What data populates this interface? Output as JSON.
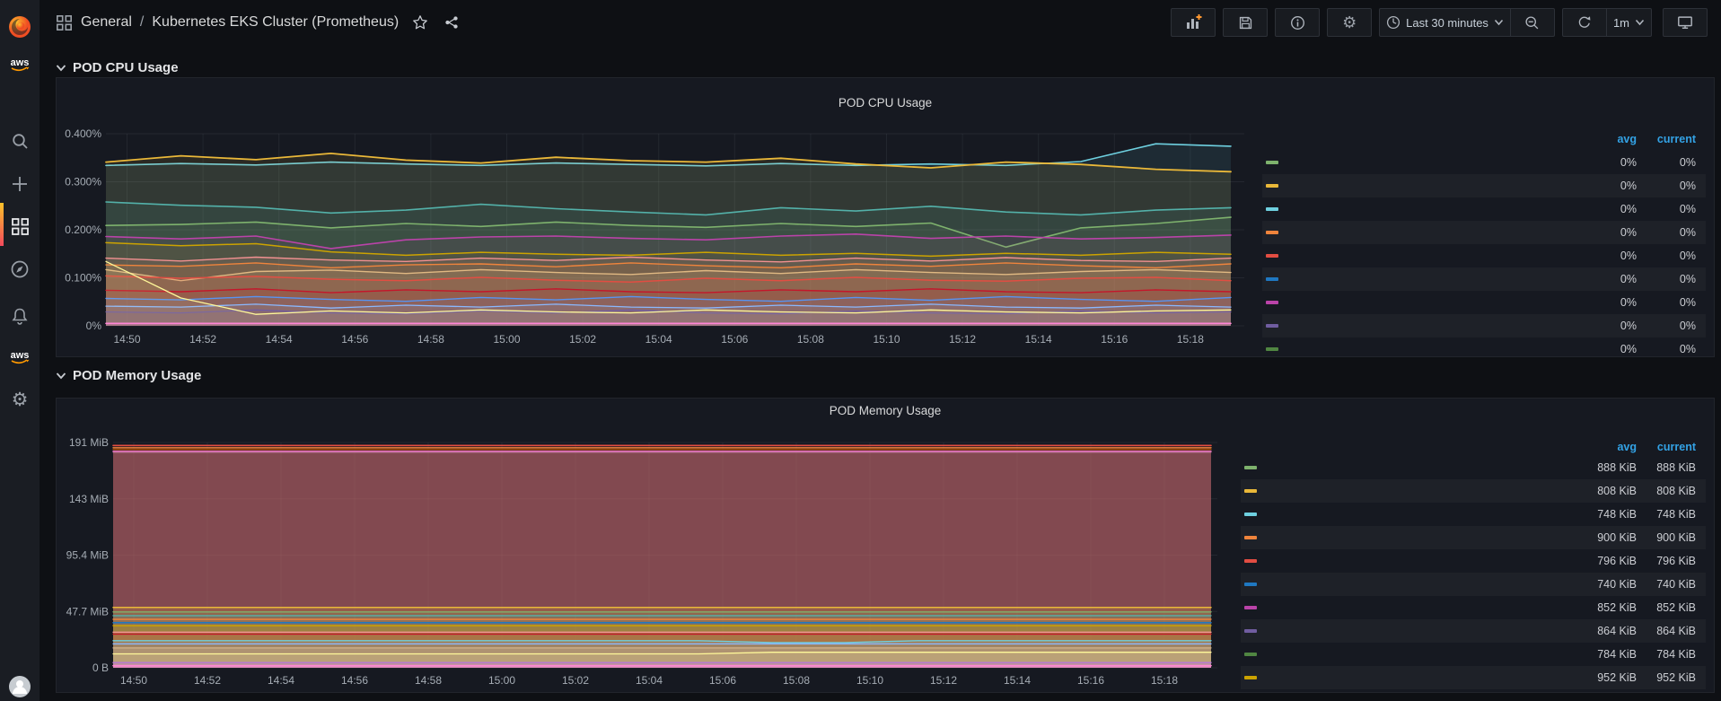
{
  "breadcrumb": {
    "folder": "General",
    "separator": "/",
    "title": "Kubernetes EKS Cluster (Prometheus)"
  },
  "toolbar": {
    "time_range": "Last 30 minutes",
    "refresh_interval": "1m",
    "icons": [
      "add-panel",
      "save-dashboard",
      "dashboard-info",
      "dashboard-settings",
      "time-range-picker",
      "zoom-out",
      "refresh",
      "cycle-view-mode"
    ]
  },
  "sidebar": {
    "items": [
      {
        "icon": "grafana-logo"
      },
      {
        "icon": "aws-logo",
        "label": "aws"
      },
      {
        "icon": "search"
      },
      {
        "icon": "create-plus"
      },
      {
        "icon": "dashboards-grid",
        "active": true
      },
      {
        "icon": "explore-compass"
      },
      {
        "icon": "alerting-bell"
      },
      {
        "icon": "aws-logo",
        "label": "aws"
      },
      {
        "icon": "settings-gear"
      },
      {
        "icon": "user-avatar"
      }
    ]
  },
  "sections": [
    {
      "title": "POD CPU Usage"
    },
    {
      "title": "POD Memory Usage"
    }
  ],
  "panels": {
    "cpu": {
      "title": "POD CPU Usage",
      "legend": {
        "headers": [
          "avg",
          "current"
        ],
        "rows": [
          {
            "color": "#7EB26D",
            "avg": "0%",
            "current": "0%"
          },
          {
            "color": "#EAB839",
            "avg": "0%",
            "current": "0%"
          },
          {
            "color": "#6ED0E0",
            "avg": "0%",
            "current": "0%"
          },
          {
            "color": "#EF843C",
            "avg": "0%",
            "current": "0%"
          },
          {
            "color": "#E24D42",
            "avg": "0%",
            "current": "0%"
          },
          {
            "color": "#1F78C1",
            "avg": "0%",
            "current": "0%"
          },
          {
            "color": "#BA43A9",
            "avg": "0%",
            "current": "0%"
          },
          {
            "color": "#705DA0",
            "avg": "0%",
            "current": "0%"
          },
          {
            "color": "#508642",
            "avg": "0%",
            "current": "0%"
          }
        ]
      }
    },
    "mem": {
      "title": "POD Memory Usage",
      "legend": {
        "headers": [
          "avg",
          "current"
        ],
        "rows": [
          {
            "color": "#7EB26D",
            "avg": "888 KiB",
            "current": "888 KiB"
          },
          {
            "color": "#EAB839",
            "avg": "808 KiB",
            "current": "808 KiB"
          },
          {
            "color": "#6ED0E0",
            "avg": "748 KiB",
            "current": "748 KiB"
          },
          {
            "color": "#EF843C",
            "avg": "900 KiB",
            "current": "900 KiB"
          },
          {
            "color": "#E24D42",
            "avg": "796 KiB",
            "current": "796 KiB"
          },
          {
            "color": "#1F78C1",
            "avg": "740 KiB",
            "current": "740 KiB"
          },
          {
            "color": "#BA43A9",
            "avg": "852 KiB",
            "current": "852 KiB"
          },
          {
            "color": "#705DA0",
            "avg": "864 KiB",
            "current": "864 KiB"
          },
          {
            "color": "#508642",
            "avg": "784 KiB",
            "current": "784 KiB"
          },
          {
            "color": "#CCA300",
            "avg": "952 KiB",
            "current": "952 KiB"
          }
        ]
      }
    }
  },
  "chart_data": [
    {
      "type": "line",
      "title": "POD CPU Usage",
      "unit": "percent",
      "x_ticks": [
        "14:50",
        "14:52",
        "14:54",
        "14:56",
        "14:58",
        "15:00",
        "15:02",
        "15:04",
        "15:06",
        "15:08",
        "15:10",
        "15:12",
        "15:14",
        "15:16",
        "15:18"
      ],
      "y_ticks": [
        "0.400%",
        "0.300%",
        "0.200%",
        "0.100%",
        "0%"
      ],
      "y_max": 0.4,
      "legend_position": "right",
      "grid": true,
      "series": [
        {
          "color": "#6ED0E0",
          "fill": 0.1,
          "w": 1.6,
          "values": [
            0.334,
            0.338,
            0.335,
            0.341,
            0.337,
            0.334,
            0.339,
            0.336,
            0.333,
            0.338,
            0.334,
            0.337,
            0.334,
            0.342,
            0.379,
            0.374
          ]
        },
        {
          "color": "#EAB839",
          "fill": 0.1,
          "w": 1.8,
          "values": [
            0.341,
            0.354,
            0.346,
            0.359,
            0.345,
            0.339,
            0.351,
            0.344,
            0.341,
            0.349,
            0.337,
            0.329,
            0.341,
            0.336,
            0.326,
            0.321
          ]
        },
        {
          "color": "#53B1A9",
          "fill": 0.1,
          "w": 1.6,
          "values": [
            0.258,
            0.251,
            0.247,
            0.235,
            0.241,
            0.253,
            0.244,
            0.237,
            0.231,
            0.246,
            0.239,
            0.249,
            0.237,
            0.231,
            0.241,
            0.246
          ]
        },
        {
          "color": "#7EB26D",
          "fill": 0.1,
          "w": 1.6,
          "values": [
            0.209,
            0.211,
            0.216,
            0.204,
            0.213,
            0.207,
            0.216,
            0.209,
            0.205,
            0.213,
            0.207,
            0.214,
            0.164,
            0.204,
            0.213,
            0.226
          ]
        },
        {
          "color": "#BA43A9",
          "fill": 0.08,
          "w": 1.6,
          "values": [
            0.186,
            0.181,
            0.187,
            0.161,
            0.179,
            0.185,
            0.187,
            0.182,
            0.179,
            0.187,
            0.191,
            0.182,
            0.187,
            0.181,
            0.184,
            0.189
          ]
        },
        {
          "color": "#CCA300",
          "fill": 0.08,
          "w": 1.5,
          "values": [
            0.173,
            0.167,
            0.171,
            0.154,
            0.147,
            0.153,
            0.149,
            0.147,
            0.153,
            0.147,
            0.151,
            0.145,
            0.151,
            0.147,
            0.153,
            0.149
          ]
        },
        {
          "color": "#F29191",
          "fill": 0.13,
          "w": 1.4,
          "values": [
            0.141,
            0.135,
            0.143,
            0.137,
            0.134,
            0.141,
            0.136,
            0.143,
            0.137,
            0.133,
            0.141,
            0.135,
            0.142,
            0.136,
            0.134,
            0.141
          ]
        },
        {
          "color": "#EF843C",
          "fill": 0.13,
          "w": 1.4,
          "values": [
            0.127,
            0.124,
            0.131,
            0.121,
            0.127,
            0.129,
            0.123,
            0.131,
            0.125,
            0.121,
            0.129,
            0.124,
            0.131,
            0.125,
            0.121,
            0.129
          ]
        },
        {
          "color": "#E0B882",
          "fill": 0.13,
          "w": 1.4,
          "values": [
            0.117,
            0.094,
            0.113,
            0.116,
            0.109,
            0.117,
            0.111,
            0.107,
            0.115,
            0.109,
            0.117,
            0.111,
            0.107,
            0.113,
            0.117,
            0.111
          ]
        },
        {
          "color": "#E24D42",
          "fill": 0.13,
          "w": 1.5,
          "values": [
            0.104,
            0.099,
            0.103,
            0.097,
            0.094,
            0.101,
            0.095,
            0.091,
            0.099,
            0.094,
            0.101,
            0.095,
            0.093,
            0.099,
            0.101,
            0.094
          ]
        },
        {
          "color": "#C4162A",
          "fill": 0.12,
          "w": 1.4,
          "values": [
            0.074,
            0.071,
            0.077,
            0.069,
            0.075,
            0.071,
            0.077,
            0.071,
            0.069,
            0.075,
            0.071,
            0.077,
            0.071,
            0.069,
            0.075,
            0.071
          ]
        },
        {
          "color": "#5794F2",
          "fill": 0.1,
          "w": 1.4,
          "values": [
            0.057,
            0.054,
            0.061,
            0.055,
            0.051,
            0.059,
            0.054,
            0.061,
            0.055,
            0.051,
            0.059,
            0.053,
            0.061,
            0.055,
            0.051,
            0.059
          ]
        },
        {
          "color": "#8AB8FF",
          "fill": 0.1,
          "w": 1.3,
          "values": [
            0.041,
            0.039,
            0.045,
            0.037,
            0.043,
            0.039,
            0.045,
            0.039,
            0.037,
            0.043,
            0.039,
            0.045,
            0.039,
            0.037,
            0.043,
            0.039
          ]
        },
        {
          "color": "#705DA0",
          "fill": 0.12,
          "w": 1.3,
          "values": [
            0.029,
            0.027,
            0.033,
            0.027,
            0.025,
            0.031,
            0.027,
            0.033,
            0.027,
            0.025,
            0.031,
            0.027,
            0.025,
            0.031,
            0.027,
            0.029
          ]
        },
        {
          "color": "#FFF899",
          "fill": 0.08,
          "w": 1.3,
          "values": [
            0.134,
            0.058,
            0.024,
            0.031,
            0.027,
            0.033,
            0.029,
            0.027,
            0.033,
            0.029,
            0.027,
            0.033,
            0.029,
            0.027,
            0.031,
            0.033
          ]
        },
        {
          "color": "#FF85D6",
          "fill": 0.2,
          "w": 1.6,
          "values": [
            0.005,
            0.005,
            0.005,
            0.005,
            0.005,
            0.005,
            0.005,
            0.005,
            0.005,
            0.005,
            0.005,
            0.005,
            0.005,
            0.005,
            0.005,
            0.005
          ]
        }
      ]
    },
    {
      "type": "line",
      "title": "POD Memory Usage",
      "unit": "bytes",
      "x_ticks": [
        "14:50",
        "14:52",
        "14:54",
        "14:56",
        "14:58",
        "15:00",
        "15:02",
        "15:04",
        "15:06",
        "15:08",
        "15:10",
        "15:12",
        "15:14",
        "15:16",
        "15:18"
      ],
      "y_ticks": [
        "191 MiB",
        "143 MiB",
        "95.4 MiB",
        "47.7 MiB",
        "0 B"
      ],
      "y_max": 191,
      "legend_position": "right",
      "grid": true,
      "series": [
        {
          "color": "#E24D42",
          "fill": 0.12,
          "w": 1.6,
          "value": 188.5
        },
        {
          "color": "#EF843C",
          "fill": 0.12,
          "w": 1.4,
          "value": 186.6
        },
        {
          "color": "#99440A",
          "fill": 0.25,
          "w": 1.4,
          "value": 185.2
        },
        {
          "color": "#E36BBE",
          "fill": 0.05,
          "w": 1.4,
          "value": 183.6
        },
        {
          "color": "#C97BA5",
          "fill": 0.32,
          "w": 1.2,
          "value": 182.8
        },
        {
          "color": "#EAB839",
          "fill": 0.18,
          "w": 1.5,
          "value": 51.2
        },
        {
          "color": "#7EB26D",
          "fill": 0.12,
          "w": 1.4,
          "value": 47.3
        },
        {
          "color": "#53B1A9",
          "fill": 0.12,
          "w": 1.4,
          "value": 44.2
        },
        {
          "color": "#EF843C",
          "fill": 0.1,
          "w": 1.4,
          "value": 41.1
        },
        {
          "color": "#1F78C1",
          "fill": 0.1,
          "w": 1.5,
          "value": 38.3
        },
        {
          "color": "#CCA300",
          "fill": 0.32,
          "w": 1.4,
          "value": 35.8
        },
        {
          "color": "#F29191",
          "fill": 0.12,
          "w": 1.4,
          "value": 30.2
        },
        {
          "color": "#C4162A",
          "fill": 0.12,
          "w": 1.4,
          "value": 28.6
        },
        {
          "color": "#6ED0E0",
          "fill": 0.1,
          "w": 1.4,
          "values": [
            23,
            23,
            23,
            23,
            23,
            23,
            23,
            23,
            23,
            21.4,
            21.4,
            23,
            23,
            23,
            23,
            23
          ]
        },
        {
          "color": "#8AB8FF",
          "fill": 0.1,
          "w": 1.3,
          "value": 20.3
        },
        {
          "color": "#D2B48C",
          "fill": 0.3,
          "w": 1.3,
          "value": 16.8
        },
        {
          "color": "#FFF899",
          "fill": 0.15,
          "w": 1.3,
          "values": [
            11.8,
            11.8,
            11.8,
            11.8,
            11.8,
            11.8,
            11.8,
            11.8,
            11.8,
            13.2,
            13.2,
            13.2,
            13.2,
            13.2,
            13.2,
            13.2
          ]
        },
        {
          "color": "#B877D9",
          "fill": 0.35,
          "w": 1.4,
          "value": 4.4
        },
        {
          "color": "#FF85D6",
          "fill": 0.5,
          "w": 1.6,
          "value": 1.8
        }
      ]
    }
  ]
}
